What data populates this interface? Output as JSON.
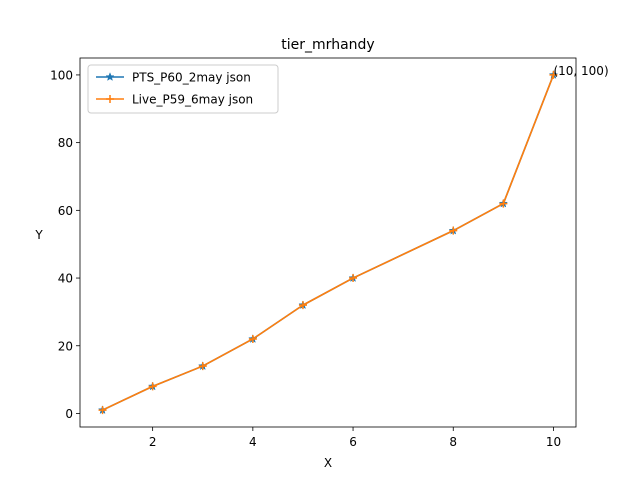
{
  "chart_data": {
    "type": "line",
    "title": "tier_mrhandy",
    "xlabel": "X",
    "ylabel": "Y",
    "xlim": [
      0.55,
      10.45
    ],
    "ylim": [
      -4.0,
      105.0
    ],
    "xticks": [
      2,
      4,
      6,
      8,
      10
    ],
    "yticks": [
      0,
      20,
      40,
      60,
      80,
      100
    ],
    "grid": false,
    "legend_position": "top-left",
    "series": [
      {
        "name": "PTS_P60_2may json",
        "color": "#1f77b4",
        "marker": "star",
        "x": [
          1,
          2,
          3,
          4,
          5,
          6,
          8,
          9,
          10
        ],
        "y": [
          1,
          8,
          14,
          22,
          32,
          40,
          54,
          62,
          100
        ]
      },
      {
        "name": "Live_P59_6may json",
        "color": "#ff7f0e",
        "marker": "plus",
        "x": [
          1,
          2,
          3,
          4,
          5,
          6,
          8,
          9,
          10
        ],
        "y": [
          1,
          8,
          14,
          22,
          32,
          40,
          54,
          62,
          100
        ]
      }
    ],
    "annotations": [
      {
        "text": "(10, 100)",
        "x": 10,
        "y": 100
      }
    ]
  }
}
